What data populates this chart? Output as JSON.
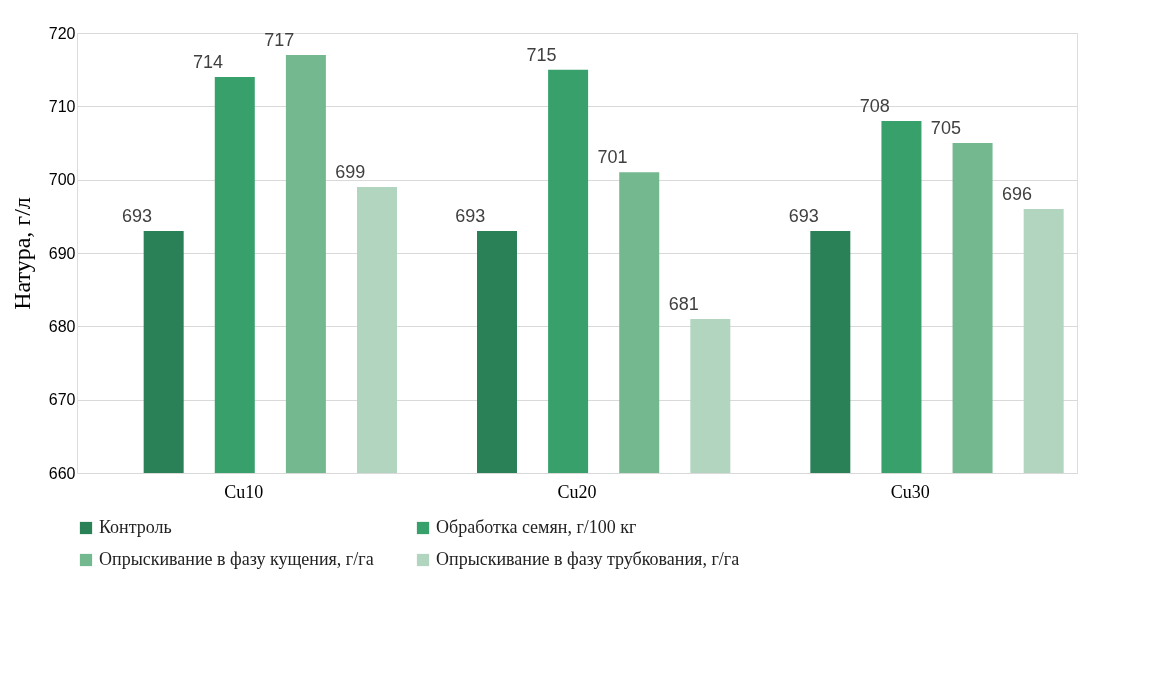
{
  "chart_data": {
    "type": "bar",
    "ylabel": "Натура, г/л",
    "categories": [
      "Cu10",
      "Cu20",
      "Cu30"
    ],
    "series": [
      {
        "name": "Контроль",
        "color": "#2a8157",
        "values": [
          693,
          693,
          693
        ]
      },
      {
        "name": "Обработка семян, г/100 кг",
        "color": "#38a06a",
        "values": [
          714,
          715,
          708
        ]
      },
      {
        "name": "Опрыскивание в фазу кущения, г/га",
        "color": "#74b88f",
        "values": [
          717,
          701,
          705
        ]
      },
      {
        "name": "Опрыскивание в фазу трубкования, г/га",
        "color": "#b2d5c0",
        "values": [
          699,
          681,
          696
        ]
      }
    ],
    "ylim": [
      660,
      720
    ],
    "yticks": [
      660,
      670,
      680,
      690,
      700,
      710,
      720
    ],
    "grid": "y",
    "legend": "bottom",
    "data_labels": true
  }
}
